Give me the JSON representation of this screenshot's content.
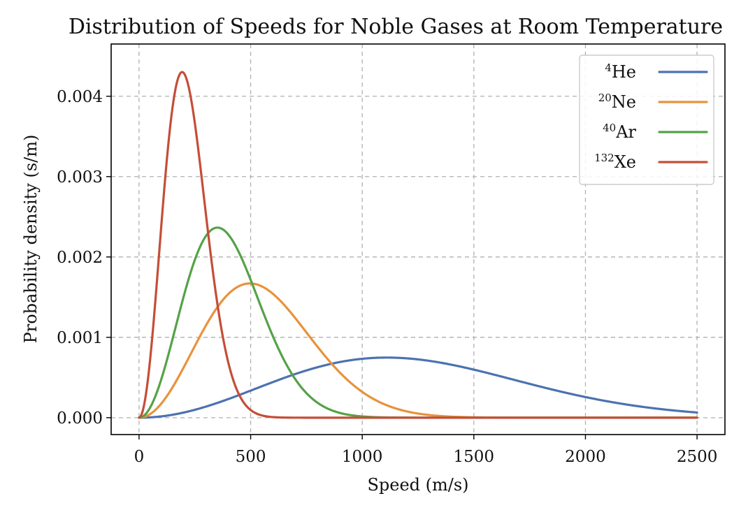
{
  "chart_data": {
    "type": "line",
    "title": "Distribution of Speeds for Noble Gases at Room Temperature",
    "xlabel": "Speed (m/s)",
    "ylabel": "Probability density (s/m)",
    "xlim": [
      -125,
      2625
    ],
    "ylim": [
      -0.00021,
      0.00465
    ],
    "xticks": [
      0,
      500,
      1000,
      1500,
      2000,
      2500
    ],
    "xtick_labels": [
      "0",
      "500",
      "1000",
      "1500",
      "2000",
      "2500"
    ],
    "yticks": [
      0,
      0.001,
      0.002,
      0.003,
      0.004
    ],
    "ytick_labels": [
      "0.000",
      "0.001",
      "0.002",
      "0.003",
      "0.004"
    ],
    "grid": true,
    "legend_position": "top-right",
    "x_range": [
      0,
      2500
    ],
    "series": [
      {
        "name": "He",
        "superscript": "4",
        "mass_number": 4,
        "peak_speed": 1110,
        "peak_density": 0.00074,
        "color": "#4c72b0"
      },
      {
        "name": "Ne",
        "superscript": "20",
        "mass_number": 20,
        "peak_speed": 497,
        "peak_density": 0.00168,
        "color": "#e8923c"
      },
      {
        "name": "Ar",
        "superscript": "40",
        "mass_number": 40,
        "peak_speed": 351,
        "peak_density": 0.00238,
        "color": "#55a247"
      },
      {
        "name": "Xe",
        "superscript": "132",
        "mass_number": 132,
        "peak_speed": 193,
        "peak_density": 0.00432,
        "color": "#c44e38"
      }
    ]
  }
}
